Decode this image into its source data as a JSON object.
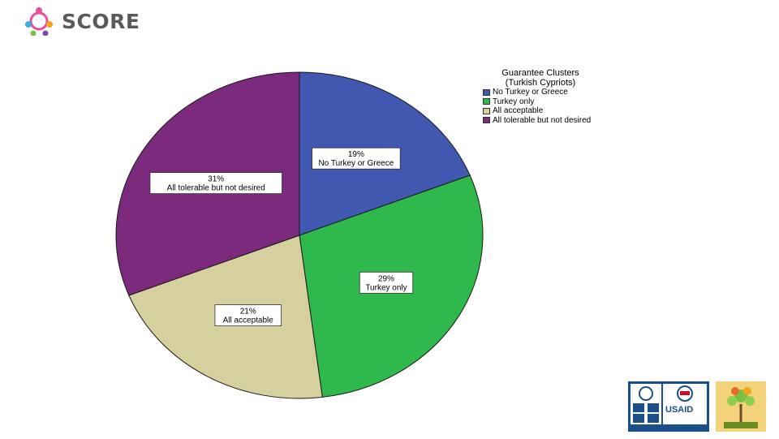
{
  "header": {
    "logo_text": "SCORE",
    "logo_icon": "score-people-icon"
  },
  "legend": {
    "title_line1": "Guarantee Clusters",
    "title_line2": "(Turkish Cypriots)"
  },
  "chart_data": {
    "type": "pie",
    "title": "Guarantee Clusters (Turkish Cypriots)",
    "start": "12 o'clock",
    "direction": "clockwise",
    "slices": [
      {
        "label": "No Turkey or Greece",
        "value": 19,
        "display": "19%",
        "color": "#4158b0"
      },
      {
        "label": "Turkey only",
        "value": 29,
        "display": "29%",
        "color": "#2fb84c"
      },
      {
        "label": "All acceptable",
        "value": 21,
        "display": "21%",
        "color": "#d5d09d"
      },
      {
        "label": "All tolerable but not desired",
        "value": 31,
        "display": "31%",
        "color": "#7b2a7d"
      }
    ],
    "legend_placement": "right"
  },
  "partners": {
    "usaid_label": "USAID",
    "undp_icon": "undp-logo-icon",
    "seed_icon": "seed-logo-icon"
  }
}
